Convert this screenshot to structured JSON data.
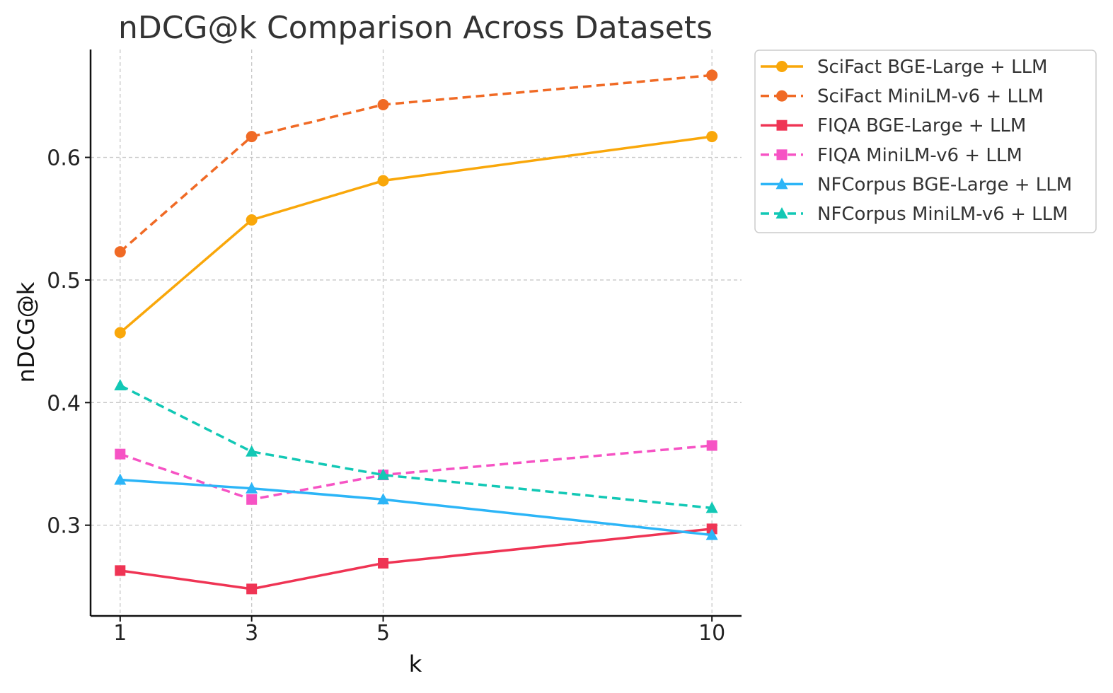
{
  "chart_data": {
    "type": "line",
    "title": "nDCG@k Comparison Across Datasets",
    "xlabel": "k",
    "ylabel": "nDCG@k",
    "x": [
      1,
      3,
      5,
      10
    ],
    "x_tick_labels": [
      "1",
      "3",
      "5",
      "10"
    ],
    "y_ticks": [
      0.3,
      0.4,
      0.5,
      0.6
    ],
    "y_tick_labels": [
      "0.3",
      "0.4",
      "0.5",
      "0.6"
    ],
    "xlim": [
      0.55,
      10.45
    ],
    "ylim": [
      0.226,
      0.688
    ],
    "grid": true,
    "legend_position": "outside-top-right",
    "series": [
      {
        "name": "SciFact BGE-Large + LLM",
        "values": [
          0.457,
          0.549,
          0.581,
          0.617
        ],
        "color": "#f9a70a",
        "dash": "solid",
        "marker": "circle"
      },
      {
        "name": "SciFact MiniLM-v6 + LLM",
        "values": [
          0.523,
          0.617,
          0.643,
          0.667
        ],
        "color": "#f06a25",
        "dash": "dashed",
        "marker": "circle"
      },
      {
        "name": "FIQA BGE-Large + LLM",
        "values": [
          0.263,
          0.248,
          0.269,
          0.297
        ],
        "color": "#ef3454",
        "dash": "solid",
        "marker": "square"
      },
      {
        "name": "FIQA MiniLM-v6 + LLM",
        "values": [
          0.358,
          0.321,
          0.341,
          0.365
        ],
        "color": "#f653c4",
        "dash": "dashed",
        "marker": "square"
      },
      {
        "name": "NFCorpus BGE-Large + LLM",
        "values": [
          0.337,
          0.33,
          0.321,
          0.292
        ],
        "color": "#2cb5f7",
        "dash": "solid",
        "marker": "triangle"
      },
      {
        "name": "NFCorpus MiniLM-v6 + LLM",
        "values": [
          0.414,
          0.36,
          0.341,
          0.314
        ],
        "color": "#12c8b5",
        "dash": "dashed",
        "marker": "triangle"
      }
    ]
  }
}
